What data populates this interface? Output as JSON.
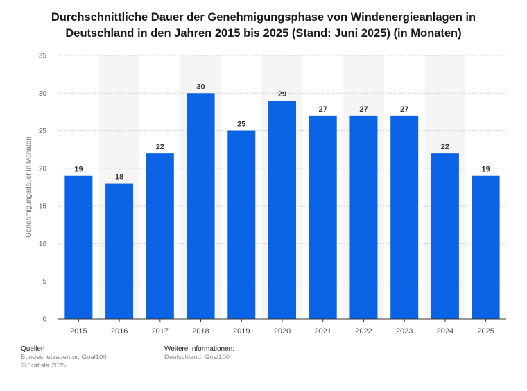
{
  "chart_data": {
    "type": "bar",
    "title": "Durchschnittliche Dauer der Genehmigungsphase von Windenergieanlagen in Deutschland in den Jahren 2015 bis 2025 (Stand: Juni 2025) (in Monaten)",
    "xlabel": "",
    "ylabel": "Genehmigungsdauer in Monaten",
    "categories": [
      "2015",
      "2016",
      "2017",
      "2018",
      "2019",
      "2020",
      "2021",
      "2022",
      "2023",
      "2024",
      "2025"
    ],
    "values": [
      19,
      18,
      22,
      30,
      25,
      29,
      27,
      27,
      27,
      22,
      19
    ],
    "ylim": [
      0,
      35
    ],
    "yticks": [
      0,
      5,
      10,
      15,
      20,
      25,
      30,
      35
    ],
    "grid": true,
    "bar_color": "#0b63e5"
  },
  "footer": {
    "sources_heading": "Quellen",
    "sources_line": "Bundesnetzagentur; Goal100",
    "copyright": "© Statista 2025",
    "info_heading": "Weitere Informationen:",
    "info_line": "Deutschland; Goal100"
  }
}
